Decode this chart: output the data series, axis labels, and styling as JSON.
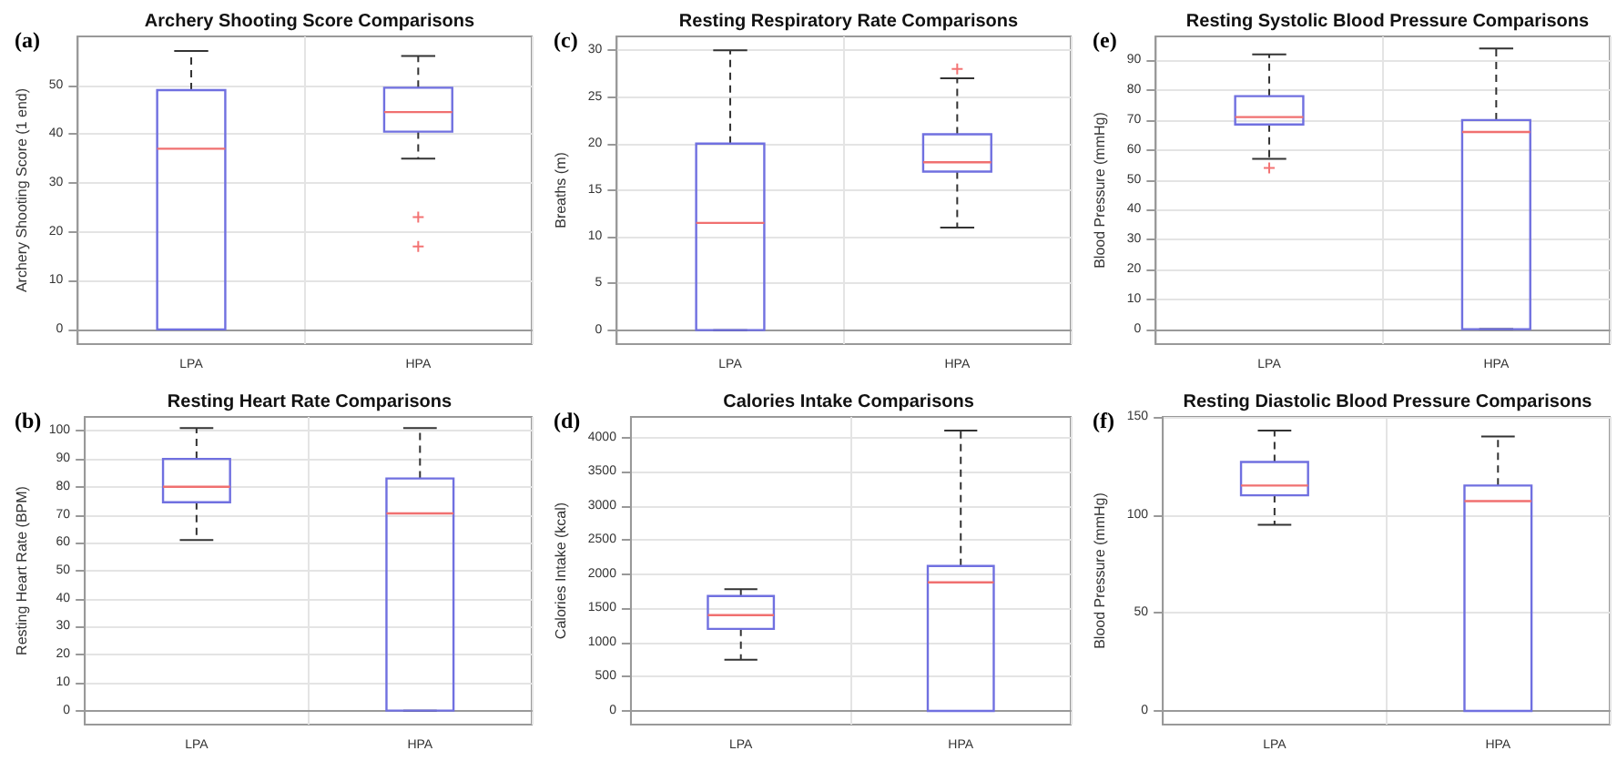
{
  "chart_data": [
    {
      "type": "box",
      "title": "Archery Shooting Score Comparisons",
      "ylabel": "Archery Shooting Score (1 end)",
      "annotations": [
        "(a)"
      ],
      "categories": [
        "LPA",
        "HPA"
      ],
      "color": "#7070e0",
      "marker": "cross",
      "line_style": "dashed",
      "grid": true,
      "ylim": [
        -3,
        60
      ],
      "yticks": [
        0,
        10,
        20,
        30,
        40,
        50
      ],
      "boxes": [
        {
          "low": 0,
          "q1": 0,
          "median": 37,
          "q3": 49,
          "high": 57
        },
        {
          "low": 35,
          "q1": 40.5,
          "median": 44.5,
          "q3": 49.5,
          "high": 56,
          "outliers": [
            23,
            17
          ]
        }
      ]
    },
    {
      "type": "box",
      "title": "Resting Respiratory Rate Comparisons",
      "ylabel": "Breaths (m)",
      "annotations": [
        "(c)"
      ],
      "categories": [
        "LPA",
        "HPA"
      ],
      "color": "#7070e0",
      "marker": "cross",
      "line_style": "dashed",
      "grid": true,
      "ylim": [
        -1.5,
        31.5
      ],
      "yticks": [
        0,
        5,
        10,
        15,
        20,
        25,
        30
      ],
      "boxes": [
        {
          "low": 0,
          "q1": 0,
          "median": 11.5,
          "q3": 20,
          "high": 30
        },
        {
          "low": 11,
          "q1": 17,
          "median": 18,
          "q3": 21,
          "high": 27,
          "outliers": [
            28
          ]
        }
      ]
    },
    {
      "type": "box",
      "title": "Resting Systolic Blood Pressure Comparisons",
      "ylabel": "Blood Pressure (mmHg)",
      "annotations": [
        "(e)"
      ],
      "categories": [
        "LPA",
        "HPA"
      ],
      "color": "#7070e0",
      "marker": "cross",
      "line_style": "dashed",
      "grid": true,
      "ylim": [
        -5,
        98
      ],
      "yticks": [
        0,
        10,
        20,
        30,
        40,
        50,
        60,
        70,
        80,
        90
      ],
      "boxes": [
        {
          "low": 57,
          "q1": 68.5,
          "median": 71,
          "q3": 78,
          "high": 92,
          "outliers": [
            54
          ]
        },
        {
          "low": 0,
          "q1": 0,
          "median": 66,
          "q3": 70,
          "high": 94
        }
      ]
    },
    {
      "type": "box",
      "title": "Resting Heart Rate Comparisons",
      "ylabel": "Resting Heart Rate (BPM)",
      "annotations": [
        "(b)"
      ],
      "categories": [
        "LPA",
        "HPA"
      ],
      "color": "#7070e0",
      "marker": "cross",
      "line_style": "dashed",
      "grid": true,
      "ylim": [
        -5,
        105
      ],
      "yticks": [
        0,
        10,
        20,
        30,
        40,
        50,
        60,
        70,
        80,
        90,
        100
      ],
      "boxes": [
        {
          "low": 61,
          "q1": 74.5,
          "median": 80,
          "q3": 90,
          "high": 101
        },
        {
          "low": 0,
          "q1": 0,
          "median": 70.5,
          "q3": 83,
          "high": 101
        }
      ]
    },
    {
      "type": "box",
      "title": "Calories Intake Comparisons",
      "ylabel": "Calories Intake (kcal)",
      "annotations": [
        "(d)"
      ],
      "categories": [
        "LPA",
        "HPA"
      ],
      "color": "#7070e0",
      "marker": "cross",
      "line_style": "dashed",
      "grid": true,
      "ylim": [
        -200,
        4300
      ],
      "yticks": [
        0,
        500,
        1000,
        1500,
        2000,
        2500,
        3000,
        3500,
        4000
      ],
      "boxes": [
        {
          "low": 750,
          "q1": 1200,
          "median": 1400,
          "q3": 1680,
          "high": 1780
        },
        {
          "low": 0,
          "q1": 0,
          "median": 1880,
          "q3": 2120,
          "high": 4100
        }
      ]
    },
    {
      "type": "box",
      "title": "Resting Diastolic Blood Pressure Comparisons",
      "ylabel": "Blood Pressure (mmHg)",
      "annotations": [
        "(f)"
      ],
      "categories": [
        "LPA",
        "HPA"
      ],
      "color": "#7070e0",
      "marker": "cross",
      "line_style": "dashed",
      "grid": true,
      "ylim": [
        -7,
        150
      ],
      "yticks": [
        0,
        50,
        100,
        150
      ],
      "boxes": [
        {
          "low": 95,
          "q1": 110,
          "median": 115,
          "q3": 127,
          "high": 143
        },
        {
          "low": 0,
          "q1": 0,
          "median": 107,
          "q3": 115,
          "high": 140
        }
      ]
    }
  ]
}
